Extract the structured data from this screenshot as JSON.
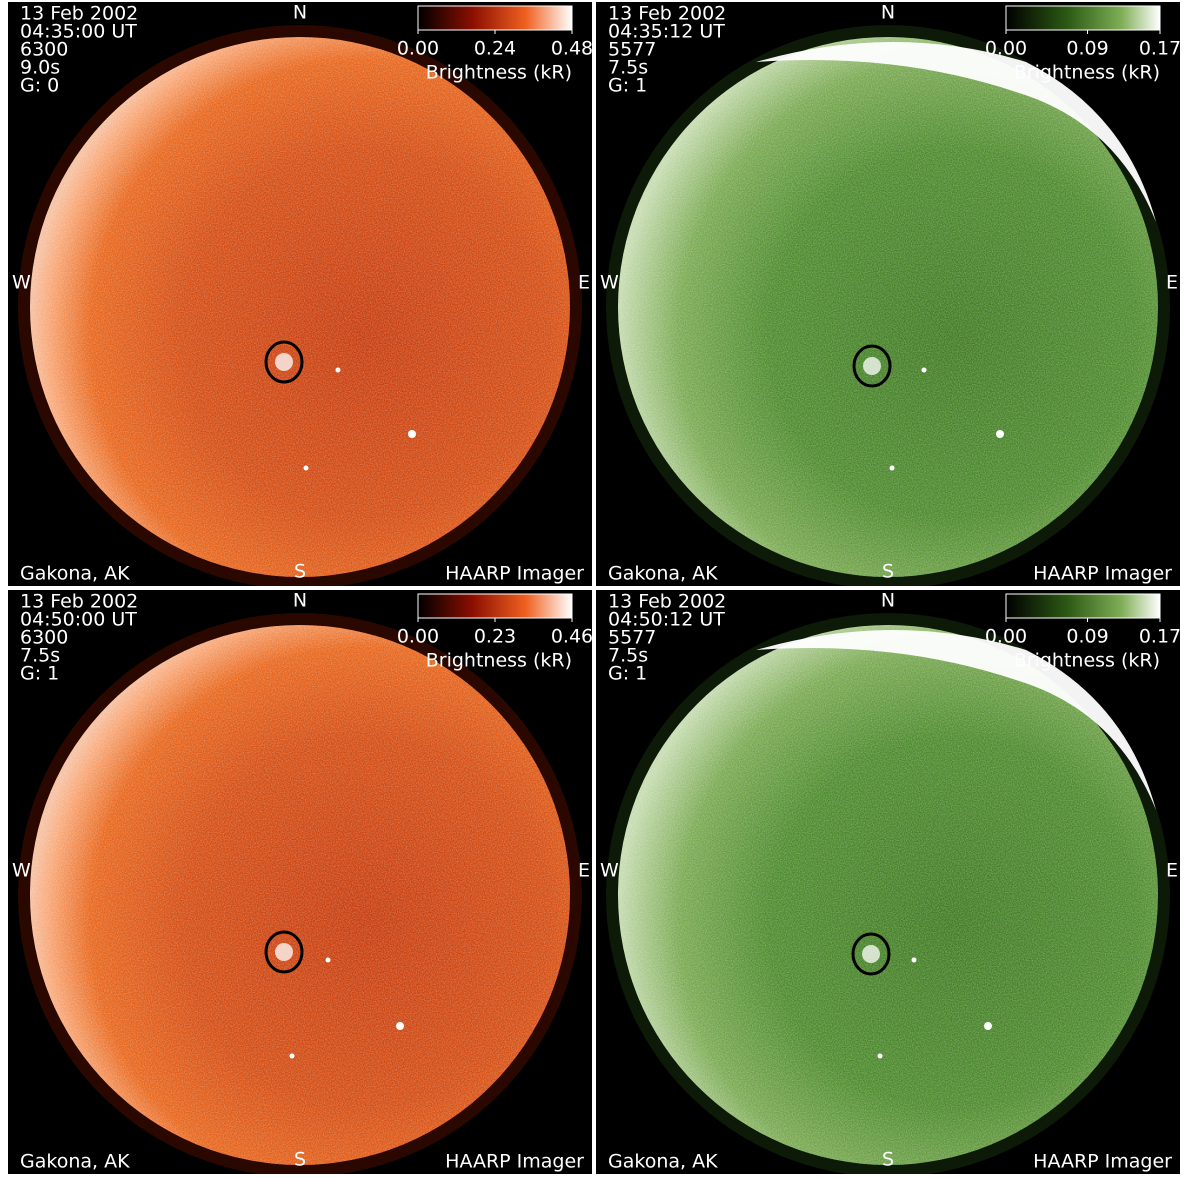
{
  "panels": [
    {
      "date": "13 Feb 2002",
      "time": "04:35:00 UT",
      "wavelength": "6300",
      "exposure": "9.0s",
      "gain": "G: 0",
      "colorbar": {
        "ticks": [
          {
            "value": 0,
            "label": "0.00"
          },
          {
            "value": 0.24,
            "label": "0.24"
          },
          {
            "value": 0.48,
            "label": "0.48"
          }
        ],
        "label": "Brightness (kR)"
      },
      "north": "N",
      "south": "S",
      "east": "E",
      "west": "W",
      "location": "Gakona, AK",
      "instrument": "HAARP Imager"
    },
    {
      "date": "13 Feb 2002",
      "time": "04:35:12 UT",
      "wavelength": "5577",
      "exposure": "7.5s",
      "gain": "G: 1",
      "colorbar": {
        "ticks": [
          {
            "value": 0,
            "label": "0.00"
          },
          {
            "value": 0.09,
            "label": "0.09"
          },
          {
            "value": 0.17,
            "label": "0.17"
          }
        ],
        "label": "Brightness (kR)"
      },
      "north": "N",
      "south": "S",
      "east": "E",
      "west": "W",
      "location": "Gakona, AK",
      "instrument": "HAARP Imager"
    },
    {
      "date": "13 Feb 2002",
      "time": "04:50:00 UT",
      "wavelength": "6300",
      "exposure": "7.5s",
      "gain": "G: 1",
      "colorbar": {
        "ticks": [
          {
            "value": 0,
            "label": "0.00"
          },
          {
            "value": 0.23,
            "label": "0.23"
          },
          {
            "value": 0.46,
            "label": "0.46"
          }
        ],
        "label": "Brightness (kR)"
      },
      "north": "N",
      "south": "S",
      "east": "E",
      "west": "W",
      "location": "Gakona, AK",
      "instrument": "HAARP Imager"
    },
    {
      "date": "13 Feb 2002",
      "time": "04:50:12 UT",
      "wavelength": "5577",
      "exposure": "7.5s",
      "gain": "G: 1",
      "colorbar": {
        "ticks": [
          {
            "value": 0,
            "label": "0.00"
          },
          {
            "value": 0.09,
            "label": "0.09"
          },
          {
            "value": 0.17,
            "label": "0.17"
          }
        ],
        "label": "Brightness (kR)"
      },
      "north": "N",
      "south": "S",
      "east": "E",
      "west": "W",
      "location": "Gakona, AK",
      "instrument": "HAARP Imager"
    }
  ]
}
